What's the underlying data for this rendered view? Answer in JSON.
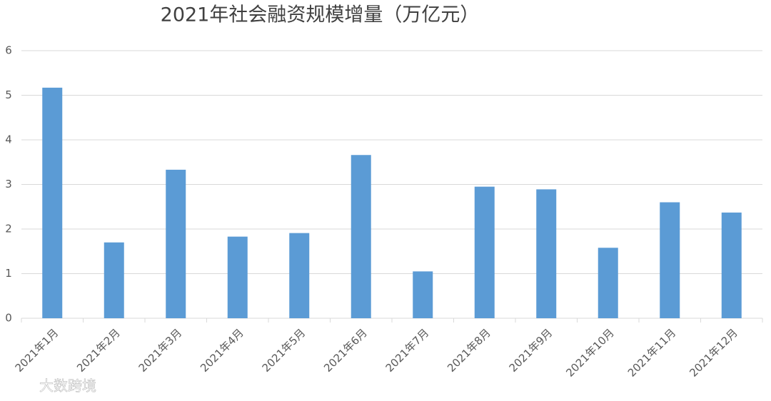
{
  "chart_data": {
    "type": "bar",
    "title": "2021年社会融资规模增量（万亿元）",
    "categories": [
      "2021年1月",
      "2021年2月",
      "2021年3月",
      "2021年4月",
      "2021年5月",
      "2021年6月",
      "2021年7月",
      "2021年8月",
      "2021年9月",
      "2021年10月",
      "2021年11月",
      "2021年12月"
    ],
    "values": [
      5.17,
      1.7,
      3.33,
      1.83,
      1.91,
      3.66,
      1.05,
      2.95,
      2.89,
      1.58,
      2.6,
      2.37
    ],
    "color": "#5b9bd5",
    "ylim": [
      0,
      6
    ],
    "yticks": [
      0,
      1,
      2,
      3,
      4,
      5,
      6
    ],
    "grid": true
  },
  "watermark": "大数跨境"
}
